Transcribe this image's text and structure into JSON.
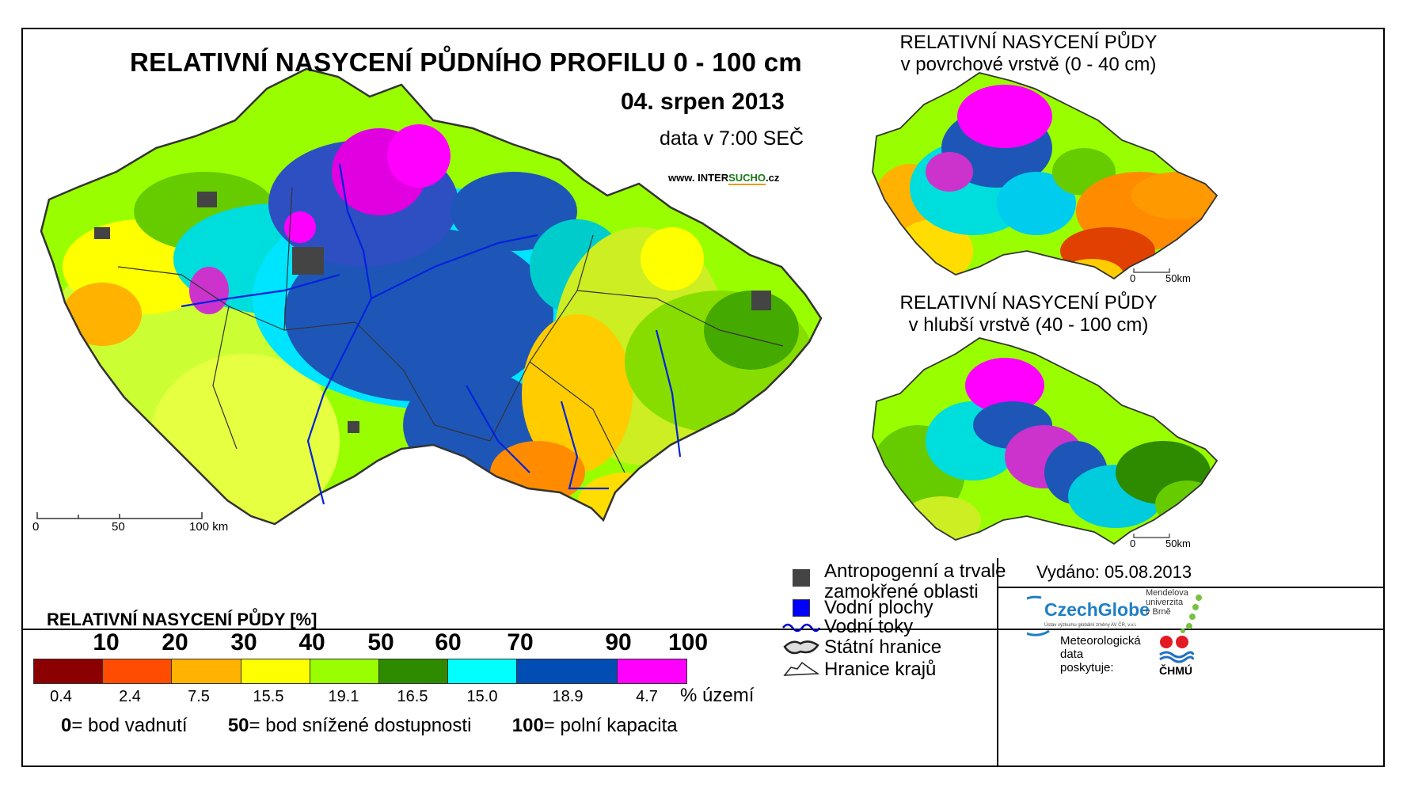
{
  "main_map": {
    "title": "RELATIVNÍ NASYCENÍ PŮDNÍHO PROFILU 0 - 100 cm",
    "date": "04. srpen 2013",
    "time": "data v 7:00 SEČ",
    "web_prefix": "www. INTER",
    "web_accent": "SUCHO",
    "web_suffix": ".cz",
    "scale": [
      "0",
      "50",
      "100 km"
    ]
  },
  "inset_top": {
    "title_line1": "RELATIVNÍ NASYCENÍ PŮDY",
    "title_line2": "v povrchové vrstvě (0 - 40 cm)",
    "scale": [
      "0",
      "50km"
    ]
  },
  "inset_bottom": {
    "title_line1": "RELATIVNÍ NASYCENÍ PŮDY",
    "title_line2": "v hlubší vrstvě (40 - 100 cm)",
    "scale": [
      "0",
      "50km"
    ]
  },
  "legend": {
    "title": "RELATIVNÍ NASYCENÍ PŮDY [%]",
    "ticks": [
      "10",
      "20",
      "30",
      "40",
      "50",
      "60",
      "70",
      "90",
      "100"
    ],
    "colors": [
      "#8b0000",
      "#ff4c00",
      "#ffb200",
      "#ffff00",
      "#99ff00",
      "#2e8b00",
      "#00ffff",
      "#004db3",
      "#ff00ff"
    ],
    "percentages": [
      "0.4",
      "2.4",
      "7.5",
      "15.5",
      "19.1",
      "16.5",
      "15.0",
      "18.9",
      "4.7"
    ],
    "pct_unit": "% území",
    "notes": [
      {
        "value": "0",
        "text": "= bod vadnutí"
      },
      {
        "value": "50",
        "text": "= bod snížené dostupnosti"
      },
      {
        "value": "100",
        "text": "= polní kapacita"
      }
    ]
  },
  "symbols": {
    "anthropogenic": "Antropogenní a trvale zamokřené oblasti",
    "water_bodies": "Vodní plochy",
    "rivers": "Vodní toky",
    "state_border": "Státní hranice",
    "region_border": "Hranice krajů",
    "colors": {
      "anthropogenic": "#444444",
      "water": "#0000ff",
      "river": "#0000cc"
    }
  },
  "footer": {
    "issued": "Vydáno: 05.08.2013",
    "czechglobe": "CzechGlobe",
    "czechglobe_sub": "Ústav výzkumu globální změny AV ČR, v.v.i.",
    "mendel": [
      "Mendelova",
      "univerzita",
      "v Brně"
    ],
    "meteo": [
      "Meteorologická",
      "data",
      "poskytuje:"
    ],
    "chmu": "ČHMÚ"
  },
  "chart_data": {
    "type": "map",
    "classes_percent_of_area": [
      {
        "range": "0-10",
        "color": "#8b0000",
        "value": 0.4
      },
      {
        "range": "10-20",
        "color": "#ff4c00",
        "value": 2.4
      },
      {
        "range": "20-30",
        "color": "#ffb200",
        "value": 7.5
      },
      {
        "range": "30-40",
        "color": "#ffff00",
        "value": 15.5
      },
      {
        "range": "40-50",
        "color": "#99ff00",
        "value": 19.1
      },
      {
        "range": "50-60",
        "color": "#2e8b00",
        "value": 16.5
      },
      {
        "range": "60-70",
        "color": "#00ffff",
        "value": 15.0
      },
      {
        "range": "70-90",
        "color": "#004db3",
        "value": 18.9
      },
      {
        "range": "90-100",
        "color": "#ff00ff",
        "value": 4.7
      }
    ]
  }
}
